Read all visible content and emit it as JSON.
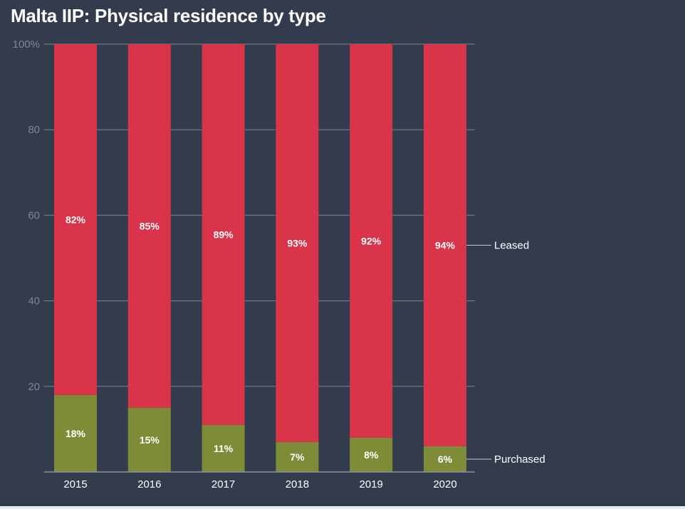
{
  "chart_data": {
    "type": "bar",
    "stacked": true,
    "title": "Malta IIP: Physical residence by type",
    "categories": [
      "2015",
      "2016",
      "2017",
      "2018",
      "2019",
      "2020"
    ],
    "series": [
      {
        "name": "Purchased",
        "values": [
          18,
          15,
          11,
          7,
          8,
          6
        ],
        "labels": [
          "18%",
          "15%",
          "11%",
          "7%",
          "8%",
          "6%"
        ],
        "color": "#7f8c37"
      },
      {
        "name": "Leased",
        "values": [
          82,
          85,
          89,
          93,
          92,
          94
        ],
        "labels": [
          "82%",
          "85%",
          "89%",
          "93%",
          "92%",
          "94%"
        ],
        "color": "#d9344a"
      }
    ],
    "ylim": [
      0,
      100
    ],
    "yticks": [
      "20",
      "40",
      "60",
      "80",
      "100%"
    ],
    "ytick_values": [
      20,
      40,
      60,
      80,
      100
    ],
    "grid": true,
    "legend": "direct-labels-right"
  }
}
